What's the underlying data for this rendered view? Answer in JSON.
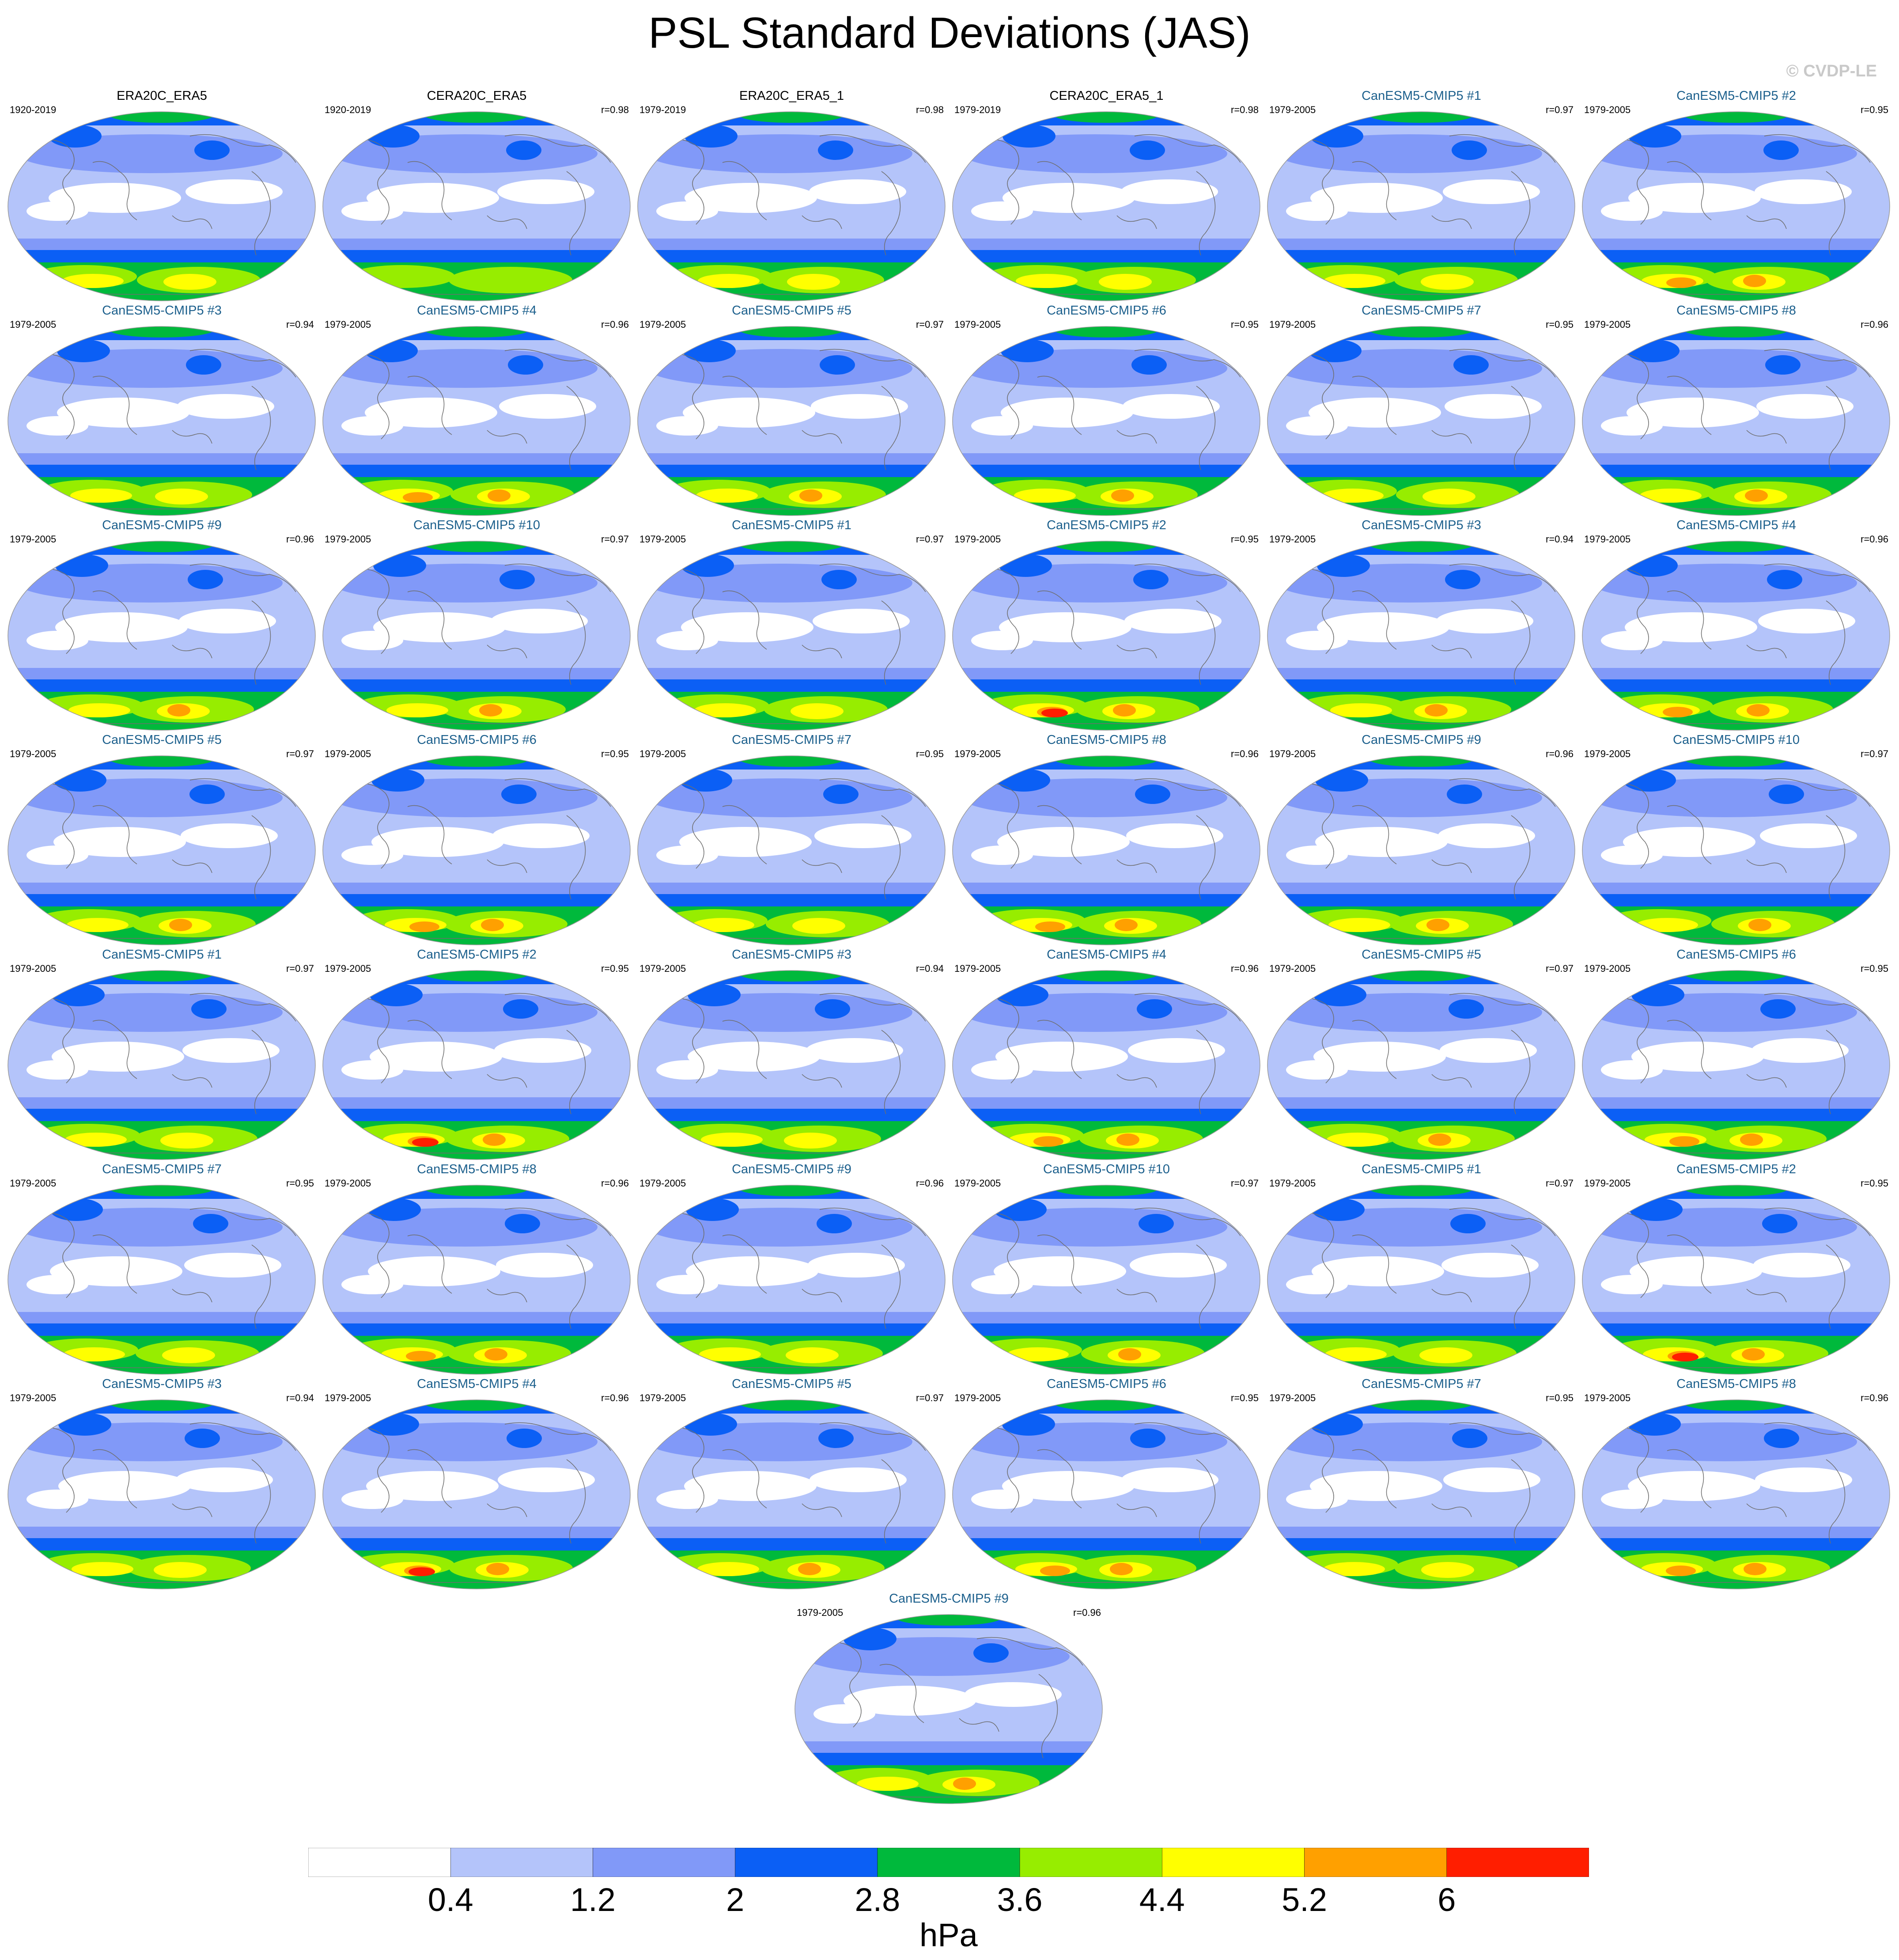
{
  "figure": {
    "title": "PSL Standard Deviations (JAS)",
    "copyright": "© CVDP-LE"
  },
  "palette": {
    "bins": [
      "#ffffff",
      "#b4c4fa",
      "#8199f8",
      "#0b5ff5",
      "#00b93c",
      "#97ed00",
      "#ffff00",
      "#ffa000",
      "#ff1e00"
    ],
    "coast": "#6e6e6e",
    "model_title": "#1b5f8c"
  },
  "panels": [
    {
      "title": "ERA20C_ERA5",
      "kind": "obs",
      "period": "1920-2019",
      "corr": "",
      "antarctic_peak": 5
    },
    {
      "title": "CERA20C_ERA5",
      "kind": "obs",
      "period": "1920-2019",
      "corr": "r=0.98",
      "antarctic_peak": 4
    },
    {
      "title": "ERA20C_ERA5_1",
      "kind": "obs",
      "period": "1979-2019",
      "corr": "r=0.98",
      "antarctic_peak": 5
    },
    {
      "title": "CERA20C_ERA5_1",
      "kind": "obs",
      "period": "1979-2019",
      "corr": "r=0.98",
      "antarctic_peak": 5
    },
    {
      "title": "CanESM5-CMIP5 #1",
      "kind": "model",
      "period": "1979-2005",
      "corr": "r=0.97",
      "antarctic_peak": 5
    },
    {
      "title": "CanESM5-CMIP5 #2",
      "kind": "model",
      "period": "1979-2005",
      "corr": "r=0.95",
      "antarctic_peak": 7
    },
    {
      "title": "CanESM5-CMIP5 #3",
      "kind": "model",
      "period": "1979-2005",
      "corr": "r=0.94",
      "antarctic_peak": 5
    },
    {
      "title": "CanESM5-CMIP5 #4",
      "kind": "model",
      "period": "1979-2005",
      "corr": "r=0.96",
      "antarctic_peak": 7
    },
    {
      "title": "CanESM5-CMIP5 #5",
      "kind": "model",
      "period": "1979-2005",
      "corr": "r=0.97",
      "antarctic_peak": 6
    },
    {
      "title": "CanESM5-CMIP5 #6",
      "kind": "model",
      "period": "1979-2005",
      "corr": "r=0.95",
      "antarctic_peak": 6
    },
    {
      "title": "CanESM5-CMIP5 #7",
      "kind": "model",
      "period": "1979-2005",
      "corr": "r=0.95",
      "antarctic_peak": 5
    },
    {
      "title": "CanESM5-CMIP5 #8",
      "kind": "model",
      "period": "1979-2005",
      "corr": "r=0.96",
      "antarctic_peak": 6
    },
    {
      "title": "CanESM5-CMIP5 #9",
      "kind": "model",
      "period": "1979-2005",
      "corr": "r=0.96",
      "antarctic_peak": 6
    },
    {
      "title": "CanESM5-CMIP5 #10",
      "kind": "model",
      "period": "1979-2005",
      "corr": "r=0.97",
      "antarctic_peak": 6
    },
    {
      "title": "CanESM5-CMIP5 #1",
      "kind": "model",
      "period": "1979-2005",
      "corr": "r=0.97",
      "antarctic_peak": 5
    },
    {
      "title": "CanESM5-CMIP5 #2",
      "kind": "model",
      "period": "1979-2005",
      "corr": "r=0.95",
      "antarctic_peak": 8
    },
    {
      "title": "CanESM5-CMIP5 #3",
      "kind": "model",
      "period": "1979-2005",
      "corr": "r=0.94",
      "antarctic_peak": 6
    },
    {
      "title": "CanESM5-CMIP5 #4",
      "kind": "model",
      "period": "1979-2005",
      "corr": "r=0.96",
      "antarctic_peak": 7
    },
    {
      "title": "CanESM5-CMIP5 #5",
      "kind": "model",
      "period": "1979-2005",
      "corr": "r=0.97",
      "antarctic_peak": 6
    },
    {
      "title": "CanESM5-CMIP5 #6",
      "kind": "model",
      "period": "1979-2005",
      "corr": "r=0.95",
      "antarctic_peak": 7
    },
    {
      "title": "CanESM5-CMIP5 #7",
      "kind": "model",
      "period": "1979-2005",
      "corr": "r=0.95",
      "antarctic_peak": 5
    },
    {
      "title": "CanESM5-CMIP5 #8",
      "kind": "model",
      "period": "1979-2005",
      "corr": "r=0.96",
      "antarctic_peak": 7
    },
    {
      "title": "CanESM5-CMIP5 #9",
      "kind": "model",
      "period": "1979-2005",
      "corr": "r=0.96",
      "antarctic_peak": 6
    },
    {
      "title": "CanESM5-CMIP5 #10",
      "kind": "model",
      "period": "1979-2005",
      "corr": "r=0.97",
      "antarctic_peak": 6
    },
    {
      "title": "CanESM5-CMIP5 #1",
      "kind": "model",
      "period": "1979-2005",
      "corr": "r=0.97",
      "antarctic_peak": 5
    },
    {
      "title": "CanESM5-CMIP5 #2",
      "kind": "model",
      "period": "1979-2005",
      "corr": "r=0.95",
      "antarctic_peak": 8
    },
    {
      "title": "CanESM5-CMIP5 #3",
      "kind": "model",
      "period": "1979-2005",
      "corr": "r=0.94",
      "antarctic_peak": 5
    },
    {
      "title": "CanESM5-CMIP5 #4",
      "kind": "model",
      "period": "1979-2005",
      "corr": "r=0.96",
      "antarctic_peak": 7
    },
    {
      "title": "CanESM5-CMIP5 #5",
      "kind": "model",
      "period": "1979-2005",
      "corr": "r=0.97",
      "antarctic_peak": 6
    },
    {
      "title": "CanESM5-CMIP5 #6",
      "kind": "model",
      "period": "1979-2005",
      "corr": "r=0.95",
      "antarctic_peak": 7
    },
    {
      "title": "CanESM5-CMIP5 #7",
      "kind": "model",
      "period": "1979-2005",
      "corr": "r=0.95",
      "antarctic_peak": 5
    },
    {
      "title": "CanESM5-CMIP5 #8",
      "kind": "model",
      "period": "1979-2005",
      "corr": "r=0.96",
      "antarctic_peak": 7
    },
    {
      "title": "CanESM5-CMIP5 #9",
      "kind": "model",
      "period": "1979-2005",
      "corr": "r=0.96",
      "antarctic_peak": 5
    },
    {
      "title": "CanESM5-CMIP5 #10",
      "kind": "model",
      "period": "1979-2005",
      "corr": "r=0.97",
      "antarctic_peak": 6
    },
    {
      "title": "CanESM5-CMIP5 #1",
      "kind": "model",
      "period": "1979-2005",
      "corr": "r=0.97",
      "antarctic_peak": 5
    },
    {
      "title": "CanESM5-CMIP5 #2",
      "kind": "model",
      "period": "1979-2005",
      "corr": "r=0.95",
      "antarctic_peak": 8
    },
    {
      "title": "CanESM5-CMIP5 #3",
      "kind": "model",
      "period": "1979-2005",
      "corr": "r=0.94",
      "antarctic_peak": 5
    },
    {
      "title": "CanESM5-CMIP5 #4",
      "kind": "model",
      "period": "1979-2005",
      "corr": "r=0.96",
      "antarctic_peak": 8
    },
    {
      "title": "CanESM5-CMIP5 #5",
      "kind": "model",
      "period": "1979-2005",
      "corr": "r=0.97",
      "antarctic_peak": 6
    },
    {
      "title": "CanESM5-CMIP5 #6",
      "kind": "model",
      "period": "1979-2005",
      "corr": "r=0.95",
      "antarctic_peak": 7
    },
    {
      "title": "CanESM5-CMIP5 #7",
      "kind": "model",
      "period": "1979-2005",
      "corr": "r=0.95",
      "antarctic_peak": 5
    },
    {
      "title": "CanESM5-CMIP5 #8",
      "kind": "model",
      "period": "1979-2005",
      "corr": "r=0.96",
      "antarctic_peak": 7
    },
    {
      "title": "CanESM5-CMIP5 #9",
      "kind": "model",
      "period": "1979-2005",
      "corr": "r=0.96",
      "antarctic_peak": 6
    }
  ],
  "colorbar": {
    "levels": [
      "0.4",
      "1.2",
      "2",
      "2.8",
      "3.6",
      "4.4",
      "5.2",
      "6"
    ],
    "units": "hPa"
  }
}
